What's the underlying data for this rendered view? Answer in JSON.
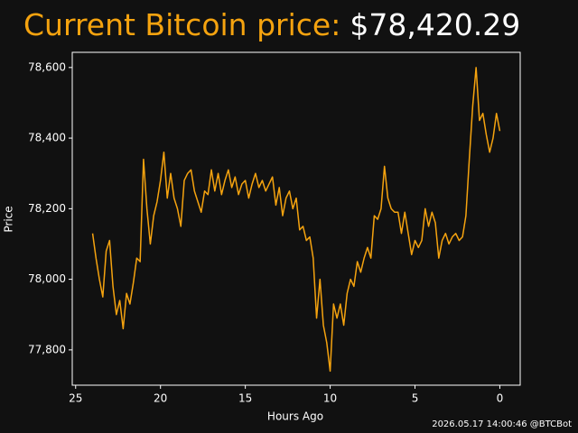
{
  "chart_data": {
    "type": "line",
    "title": "Current Bitcoin price:",
    "current_price": "$78,420.29",
    "xlabel": "Hours Ago",
    "ylabel": "Price",
    "footer": "2026.05.17 14:00:46 @BTCBot",
    "color": "#f5a30f",
    "xlim": [
      25.2,
      -1.2
    ],
    "xticks": [
      25,
      20,
      15,
      10,
      5,
      0
    ],
    "ylim": [
      77700,
      78643
    ],
    "yticks": [
      {
        "value": 77800,
        "label": "77,800"
      },
      {
        "value": 78000,
        "label": "78,000"
      },
      {
        "value": 78200,
        "label": "78,200"
      },
      {
        "value": 78400,
        "label": "78,400"
      },
      {
        "value": 78600,
        "label": "78,600"
      }
    ],
    "x": [
      24.0,
      23.8,
      23.6,
      23.4,
      23.2,
      23.0,
      22.8,
      22.6,
      22.4,
      22.2,
      22.0,
      21.8,
      21.6,
      21.4,
      21.2,
      21.0,
      20.8,
      20.6,
      20.4,
      20.2,
      20.0,
      19.8,
      19.6,
      19.4,
      19.2,
      19.0,
      18.8,
      18.6,
      18.4,
      18.2,
      18.0,
      17.8,
      17.6,
      17.4,
      17.2,
      17.0,
      16.8,
      16.6,
      16.4,
      16.2,
      16.0,
      15.8,
      15.6,
      15.4,
      15.2,
      15.0,
      14.8,
      14.6,
      14.4,
      14.2,
      14.0,
      13.8,
      13.6,
      13.4,
      13.2,
      13.0,
      12.8,
      12.6,
      12.4,
      12.2,
      12.0,
      11.8,
      11.6,
      11.4,
      11.2,
      11.0,
      10.8,
      10.6,
      10.4,
      10.2,
      10.0,
      9.8,
      9.6,
      9.4,
      9.2,
      9.0,
      8.8,
      8.6,
      8.4,
      8.2,
      8.0,
      7.8,
      7.6,
      7.4,
      7.2,
      7.0,
      6.8,
      6.6,
      6.4,
      6.2,
      6.0,
      5.8,
      5.6,
      5.4,
      5.2,
      5.0,
      4.8,
      4.6,
      4.4,
      4.2,
      4.0,
      3.8,
      3.6,
      3.4,
      3.2,
      3.0,
      2.8,
      2.6,
      2.4,
      2.2,
      2.0,
      1.8,
      1.6,
      1.4,
      1.2,
      1.0,
      0.8,
      0.6,
      0.4,
      0.2,
      0.0
    ],
    "values": [
      78130,
      78060,
      78000,
      77950,
      78080,
      78110,
      77980,
      77900,
      77940,
      77860,
      77960,
      77930,
      77990,
      78060,
      78050,
      78340,
      78200,
      78100,
      78180,
      78220,
      78280,
      78360,
      78230,
      78300,
      78230,
      78200,
      78150,
      78280,
      78300,
      78310,
      78250,
      78220,
      78190,
      78250,
      78240,
      78310,
      78250,
      78300,
      78240,
      78280,
      78310,
      78260,
      78290,
      78240,
      78270,
      78280,
      78230,
      78270,
      78300,
      78260,
      78280,
      78250,
      78270,
      78290,
      78210,
      78260,
      78180,
      78230,
      78250,
      78200,
      78230,
      78140,
      78150,
      78110,
      78120,
      78060,
      77890,
      78000,
      77870,
      77820,
      77740,
      77930,
      77890,
      77930,
      77870,
      77960,
      78000,
      77980,
      78050,
      78020,
      78060,
      78090,
      78060,
      78180,
      78170,
      78200,
      78320,
      78230,
      78200,
      78190,
      78190,
      78130,
      78190,
      78130,
      78070,
      78110,
      78090,
      78110,
      78200,
      78150,
      78190,
      78160,
      78060,
      78110,
      78130,
      78100,
      78120,
      78130,
      78110,
      78120,
      78180,
      78340,
      78490,
      78600,
      78450,
      78470,
      78410,
      78360,
      78400,
      78470,
      78420
    ]
  }
}
